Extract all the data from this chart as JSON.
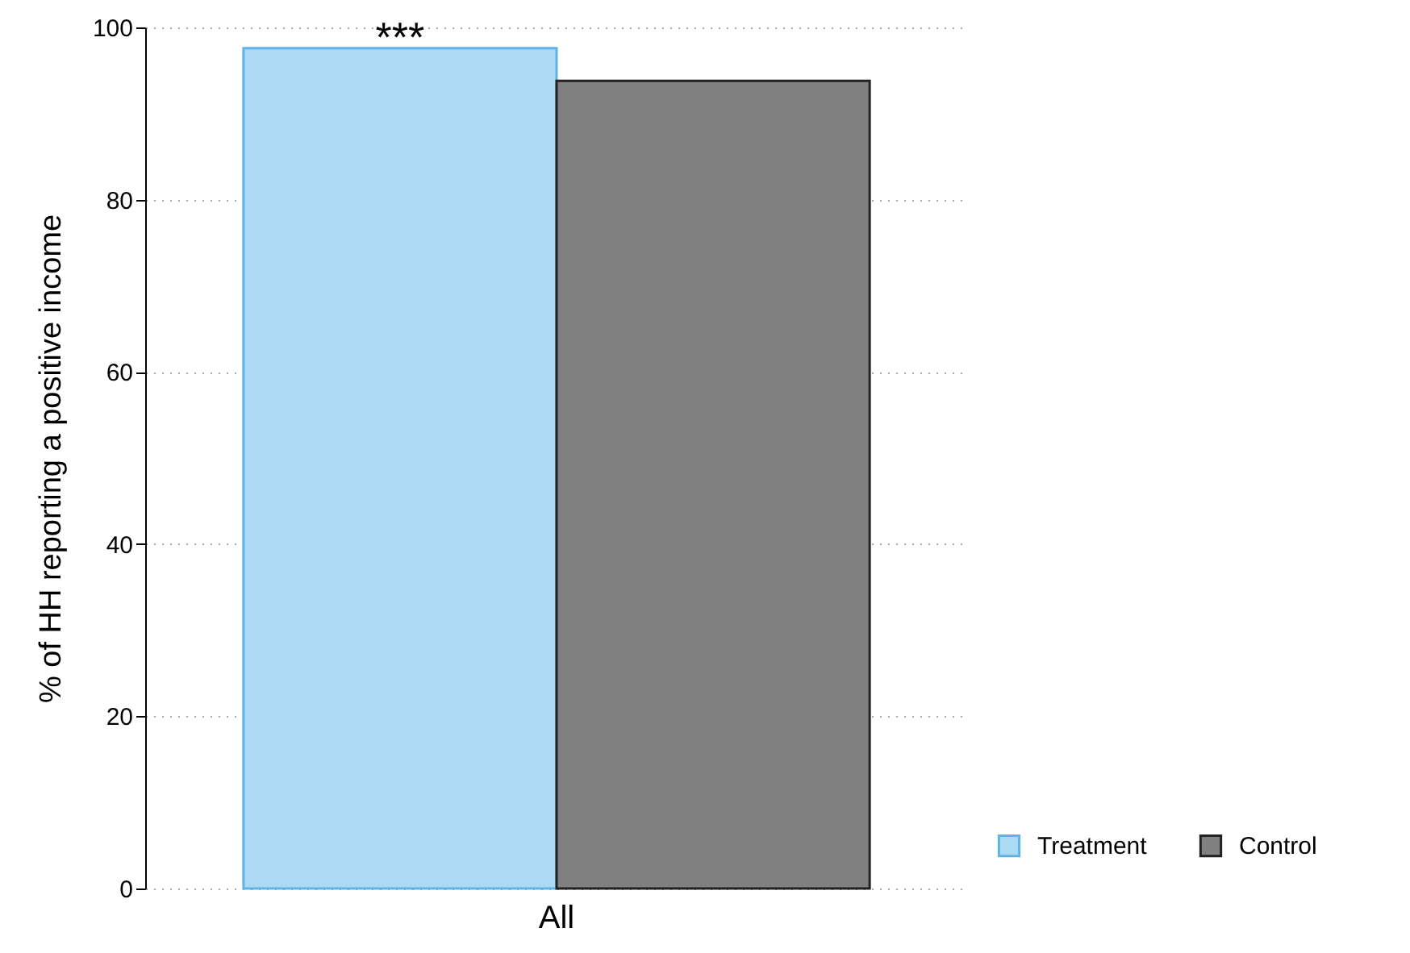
{
  "chart_data": {
    "type": "bar",
    "ylabel": "% of HH reporting a positive income",
    "categories": [
      "All"
    ],
    "series": [
      {
        "name": "Treatment",
        "color": "#acd9f3",
        "values": [
          97.6
        ]
      },
      {
        "name": "Control",
        "color": "#808080",
        "values": [
          93.8
        ]
      }
    ],
    "ylim": [
      0,
      100
    ],
    "yticks": [
      0,
      20,
      40,
      60,
      80,
      100
    ],
    "grid": "y",
    "legend": "bottom right",
    "annotations": [
      "***"
    ]
  }
}
